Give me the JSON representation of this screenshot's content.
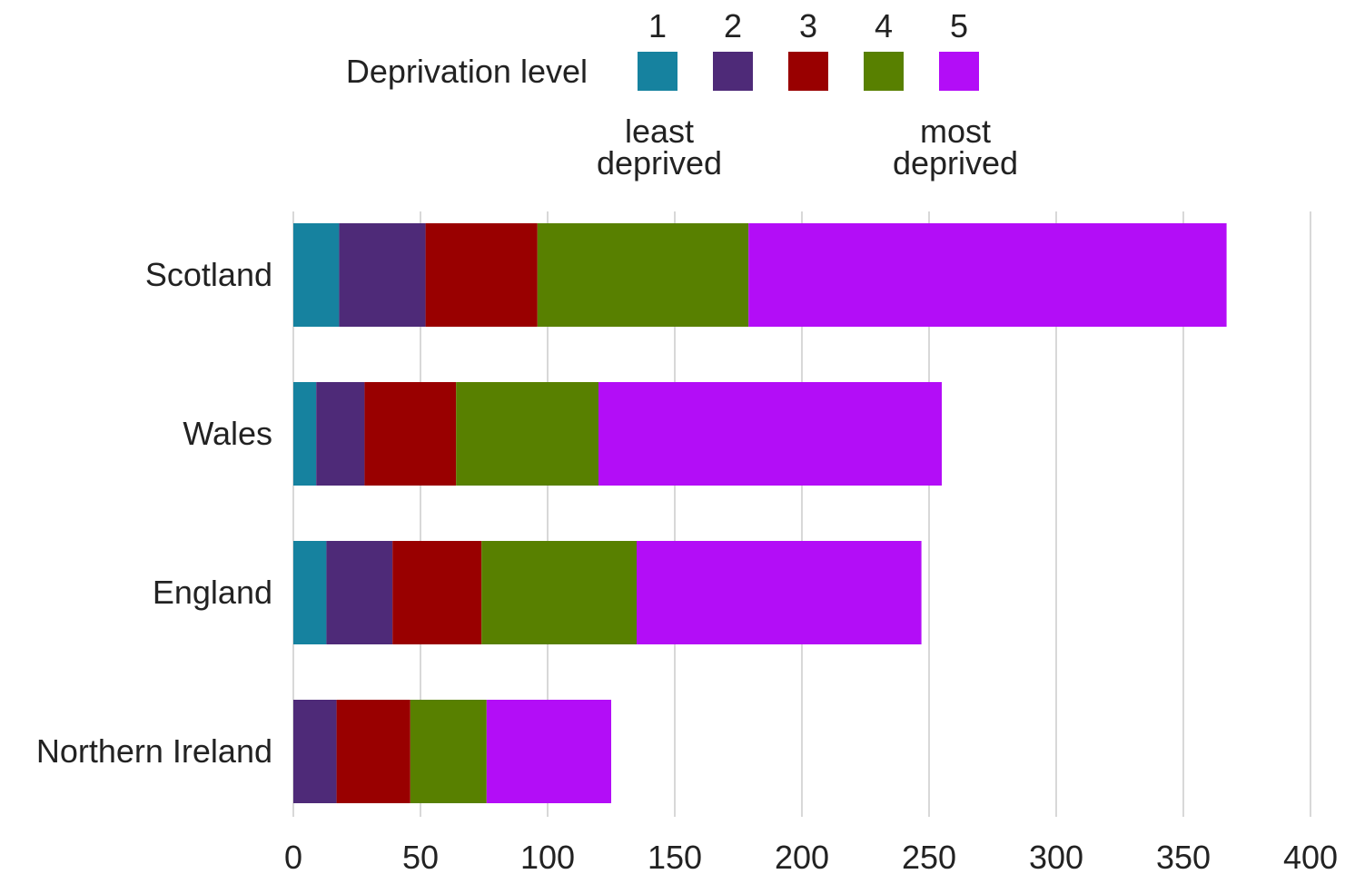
{
  "chart_data": {
    "type": "bar",
    "orientation": "horizontal",
    "stacked": true,
    "categories": [
      "Scotland",
      "Wales",
      "England",
      "Northern Ireland"
    ],
    "series": [
      {
        "name": "1",
        "color": "#16829f",
        "values": [
          18,
          9,
          13,
          0
        ]
      },
      {
        "name": "2",
        "color": "#4e2a78",
        "values": [
          34,
          19,
          26,
          17
        ]
      },
      {
        "name": "3",
        "color": "#990000",
        "values": [
          44,
          36,
          35,
          29
        ]
      },
      {
        "name": "4",
        "color": "#588000",
        "values": [
          83,
          56,
          61,
          30
        ]
      },
      {
        "name": "5",
        "color": "#b30df7",
        "values": [
          188,
          135,
          112,
          49
        ]
      }
    ],
    "xlim": [
      0,
      400
    ],
    "x_ticks": [
      "0",
      "50",
      "100",
      "150",
      "200",
      "250",
      "300",
      "350",
      "400"
    ],
    "grid": "vertical",
    "legend": {
      "title": "Deprivation level",
      "placement": "top",
      "low_label": "least\ndeprived",
      "high_label": "most\ndeprived"
    }
  }
}
